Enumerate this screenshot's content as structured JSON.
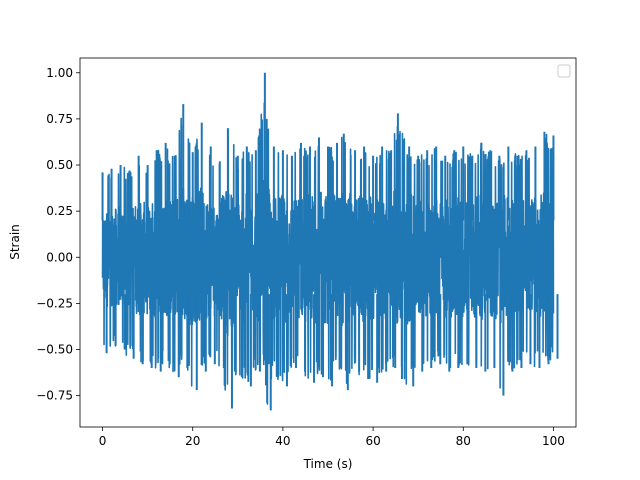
{
  "chart_data": {
    "type": "line",
    "title": "",
    "xlabel": "Time (s)",
    "ylabel": "Strain",
    "xlim": [
      -5,
      105
    ],
    "ylim": [
      -0.92,
      1.08
    ],
    "xticks": [
      0,
      20,
      40,
      60,
      80,
      100
    ],
    "xtick_labels": [
      "0",
      "20",
      "40",
      "60",
      "80",
      "100"
    ],
    "yticks": [
      -0.75,
      -0.5,
      -0.25,
      0.0,
      0.25,
      0.5,
      0.75,
      1.0
    ],
    "ytick_labels": [
      "−0.75",
      "−0.50",
      "−0.25",
      "0.00",
      "0.25",
      "0.50",
      "0.75",
      "1.00"
    ],
    "grid": false,
    "legend": {
      "placement": "upper-right",
      "entries": []
    },
    "colors": {
      "series": "#1f77b4",
      "axes": "#000000",
      "background": "#ffffff"
    },
    "series": [
      {
        "x": [
          0,
          2,
          4,
          6,
          8,
          10,
          12,
          14,
          16,
          17.9,
          20,
          22,
          24,
          26,
          27.8,
          30,
          32,
          34,
          36,
          36.4,
          38,
          40,
          42,
          44,
          46,
          48,
          50,
          52,
          53.5,
          56,
          58,
          60,
          62,
          64,
          65.5,
          68,
          70,
          72,
          74,
          76,
          78,
          80,
          82,
          84,
          86,
          88,
          90,
          92,
          94,
          96,
          98,
          100
        ],
        "max": [
          0.46,
          0.48,
          0.5,
          0.47,
          0.55,
          0.5,
          0.58,
          0.62,
          0.55,
          0.83,
          0.57,
          0.73,
          0.6,
          0.52,
          0.7,
          0.55,
          0.6,
          0.58,
          1.0,
          0.75,
          0.6,
          0.58,
          0.55,
          0.62,
          0.6,
          0.65,
          0.6,
          0.62,
          0.67,
          0.58,
          0.6,
          0.55,
          0.6,
          0.58,
          0.78,
          0.6,
          0.55,
          0.58,
          0.6,
          0.55,
          0.58,
          0.6,
          0.55,
          0.62,
          0.58,
          0.55,
          0.6,
          0.55,
          0.58,
          0.6,
          0.68,
          0.66
        ],
        "min": [
          -0.52,
          -0.48,
          -0.5,
          -0.55,
          -0.58,
          -0.6,
          -0.62,
          -0.58,
          -0.65,
          -0.6,
          -0.72,
          -0.62,
          -0.58,
          -0.6,
          -0.82,
          -0.65,
          -0.7,
          -0.62,
          -0.58,
          -0.83,
          -0.65,
          -0.7,
          -0.6,
          -0.62,
          -0.68,
          -0.65,
          -0.7,
          -0.6,
          -0.72,
          -0.62,
          -0.66,
          -0.68,
          -0.62,
          -0.6,
          -0.66,
          -0.7,
          -0.62,
          -0.6,
          -0.58,
          -0.62,
          -0.6,
          -0.58,
          -0.6,
          -0.62,
          -0.6,
          -0.75,
          -0.62,
          -0.6,
          -0.58,
          -0.6,
          -0.58,
          -0.55
        ]
      }
    ]
  }
}
